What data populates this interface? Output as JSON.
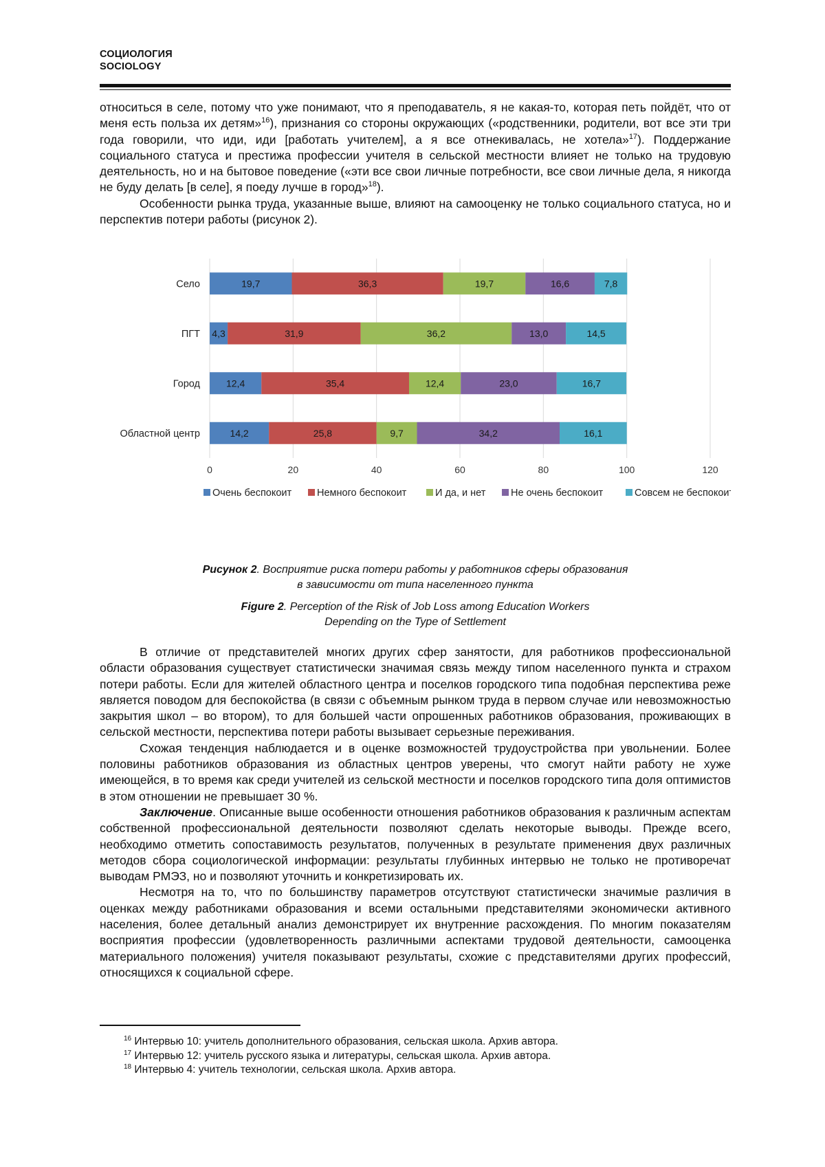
{
  "header": {
    "line1": "СОЦИОЛОГИЯ",
    "line2": "SOCIOLOGY"
  },
  "block1": {
    "p1_a": "относиться в селе, потому что уже понимают, что я преподаватель, я не какая-то, которая петь пойдёт, что от меня есть польза их детям»",
    "fn16": "16",
    "p1_b": "), признания со стороны окружающих («родственники, родители, вот все эти три года говорили, что иди, иди [работать учителем], а я все отнекивалась, не хотела»",
    "fn17": "17",
    "p1_c": "). Поддержание социального статуса и престижа профессии учителя в сельской местности влияет не только на трудовую деятельность, но и на бытовое поведение («эти все свои личные потребности, все свои личные дела, я никогда не буду делать [в селе], я поеду лучше в город»",
    "fn18": "18",
    "p1_d": ").",
    "p2": "Особенности рынка труда, указанные выше, влияют на самооценку не только социального статуса, но и перспектив потери работы (рисунок 2)."
  },
  "chart_data": {
    "type": "bar",
    "orientation": "horizontal",
    "stacked": true,
    "categories": [
      "Село",
      "ПГТ",
      "Город",
      "Областной центр"
    ],
    "series": [
      {
        "name": "Очень беспокоит",
        "color": "#4f81bd",
        "values": [
          19.7,
          4.3,
          12.4,
          14.2
        ],
        "labels": [
          "19,7",
          "4,3",
          "12,4",
          "14,2"
        ]
      },
      {
        "name": "Немного беспокоит",
        "color": "#c0504d",
        "values": [
          36.3,
          31.9,
          35.4,
          25.8
        ],
        "labels": [
          "36,3",
          "31,9",
          "35,4",
          "25,8"
        ]
      },
      {
        "name": "И да, и нет",
        "color": "#9bbb59",
        "values": [
          19.7,
          36.2,
          12.4,
          9.7
        ],
        "labels": [
          "19,7",
          "36,2",
          "12,4",
          "9,7"
        ]
      },
      {
        "name": "Не очень беспокоит",
        "color": "#8064a2",
        "values": [
          16.6,
          13.0,
          23.0,
          34.2
        ],
        "labels": [
          "16,6",
          "13,0",
          "23,0",
          "34,2"
        ]
      },
      {
        "name": "Совсем не беспокоит",
        "color": "#4bacc6",
        "values": [
          7.8,
          14.5,
          16.7,
          16.1
        ],
        "labels": [
          "7,8",
          "14,5",
          "16,7",
          "16,1"
        ]
      }
    ],
    "xlim": [
      0,
      120
    ],
    "xticks": [
      "0",
      "20",
      "40",
      "60",
      "80",
      "100",
      "120"
    ],
    "grid": true,
    "legend_position": "bottom"
  },
  "captions": {
    "ru_label": "Рисунок 2",
    "ru_line1": ". Восприятие риска потери работы у работников сферы образования",
    "ru_line2": "в зависимости от типа населенного пункта",
    "en_label": "Figure 2",
    "en_line1": ". Perception of the Risk of Job Loss among Education Workers",
    "en_line2": "Depending on the Type of Settlement"
  },
  "block2": {
    "p3": "В отличие от представителей многих других сфер занятости, для работников профессио­нальной области образования существует статистически значимая связь между типом населен­ного пункта и страхом потери работы. Если для жителей областного центра и поселков город­ского типа подобная перспектива реже является поводом для беспокойства (в связи с объемным рынком труда в первом случае или невозможностью закрытия школ – во втором), то для большей части опрошенных работников образования, проживающих в сельской местности, перспектива потери работы вызывает серьезные переживания.",
    "p4": "Схожая тенденция наблюдается и в оценке возможностей трудоустройства при увольне­нии. Более половины работников образования из областных центров уверены, что смогут найти работу не хуже имеющейся, в то время как среди учителей из сельской местности и поселков городского типа доля оптимистов в этом отношении не превышает 30 %.",
    "p5_bold": "Заключение",
    "p5": ". Описанные выше особенности отношения работников образования к различ­ным аспектам собственной профессиональной деятельности позволяют сделать некоторые вы­воды. Прежде всего, необходимо отметить сопоставимость результатов, полученных в резуль­тате применения двух различных методов сбора социологической информации: результаты глу­бинных интервью не только не противоречат выводам РМЭЗ, но и позволяют уточнить и конкре­тизировать их.",
    "p6": "Несмотря на то, что по большинству параметров отсутствуют статистически значимые раз­личия в оценках между работниками образования и всеми остальными представителями эконо­мически активного населения, более детальный анализ демонстрирует их внутренние расхожде­ния. По многим показателям восприятия профессии (удовлетворенность различными аспектами трудовой деятельности, самооценка материального положения) учителя показывают резуль­таты, схожие с представителями других профессий, относящихся к социальной сфере."
  },
  "footnotes": [
    {
      "num": "16",
      "text": " Интервью 10: учитель дополнительного образования, сельская школа. Архив автора."
    },
    {
      "num": "17",
      "text": " Интервью 12: учитель русского языка и литературы, сельская школа. Архив автора."
    },
    {
      "num": "18",
      "text": " Интервью 4: учитель технологии, сельская школа. Архив автора."
    }
  ]
}
